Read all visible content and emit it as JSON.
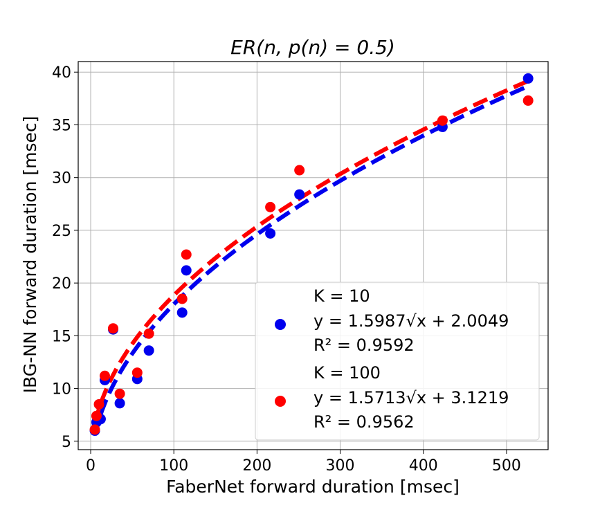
{
  "chart_data": {
    "type": "scatter",
    "title": "ER(n, p(n) = 0.5)",
    "xlabel": "FaberNet forward duration [msec]",
    "ylabel": "IBG-NN forward duration [msec]",
    "xlim": [
      -15,
      550
    ],
    "ylim": [
      4.2,
      41
    ],
    "xticks": [
      0,
      100,
      200,
      300,
      400,
      500
    ],
    "yticks": [
      5,
      10,
      15,
      20,
      25,
      30,
      35,
      40
    ],
    "grid": true,
    "legend_position": "bottom-right",
    "series": [
      {
        "name": "K = 10",
        "fit_label": "y = 1.5987√x + 2.0049",
        "r2_label": "R² = 0.9592",
        "color": "#0000ee",
        "fit": {
          "a": 1.5987,
          "b": 2.0049
        },
        "points": [
          {
            "x": 5,
            "y": 6.0
          },
          {
            "x": 7,
            "y": 6.8
          },
          {
            "x": 12,
            "y": 7.1
          },
          {
            "x": 17,
            "y": 10.8
          },
          {
            "x": 27,
            "y": 15.6
          },
          {
            "x": 35,
            "y": 8.6
          },
          {
            "x": 56,
            "y": 10.9
          },
          {
            "x": 70,
            "y": 13.6
          },
          {
            "x": 110,
            "y": 17.2
          },
          {
            "x": 115,
            "y": 21.2
          },
          {
            "x": 216,
            "y": 24.7
          },
          {
            "x": 251,
            "y": 28.4
          },
          {
            "x": 423,
            "y": 34.8
          },
          {
            "x": 526,
            "y": 39.4
          }
        ]
      },
      {
        "name": "K = 100",
        "fit_label": "y = 1.5713√x + 3.1219",
        "r2_label": "R² = 0.9562",
        "color": "#ff0000",
        "fit": {
          "a": 1.5713,
          "b": 3.1219
        },
        "points": [
          {
            "x": 5,
            "y": 6.1
          },
          {
            "x": 7,
            "y": 7.4
          },
          {
            "x": 10,
            "y": 8.5
          },
          {
            "x": 17,
            "y": 11.2
          },
          {
            "x": 27,
            "y": 15.7
          },
          {
            "x": 35,
            "y": 9.5
          },
          {
            "x": 56,
            "y": 11.5
          },
          {
            "x": 70,
            "y": 15.2
          },
          {
            "x": 110,
            "y": 18.5
          },
          {
            "x": 115,
            "y": 22.7
          },
          {
            "x": 216,
            "y": 27.2
          },
          {
            "x": 251,
            "y": 30.7
          },
          {
            "x": 423,
            "y": 35.4
          },
          {
            "x": 526,
            "y": 37.3
          }
        ]
      }
    ]
  }
}
